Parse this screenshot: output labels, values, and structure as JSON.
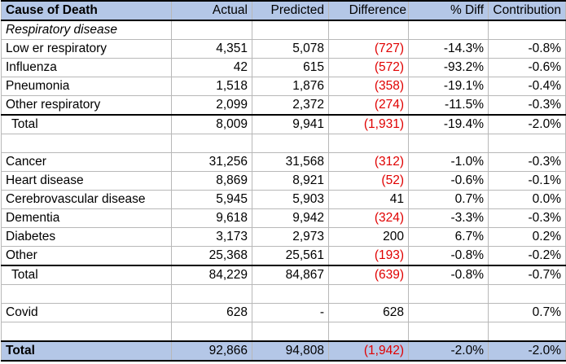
{
  "columns": [
    "Cause of Death",
    "Actual",
    "Predicted",
    "Difference",
    "% Diff",
    "Contribution"
  ],
  "rows": [
    {
      "type": "section",
      "name": "Respiratory disease"
    },
    {
      "type": "data",
      "name": "Low er respiratory",
      "actual": "4,351",
      "predicted": "5,078",
      "difference": "(727)",
      "diff_negative": true,
      "pct_diff": "-14.3%",
      "contribution": "-0.8%"
    },
    {
      "type": "data",
      "name": "Influenza",
      "actual": "42",
      "predicted": "615",
      "difference": "(572)",
      "diff_negative": true,
      "pct_diff": "-93.2%",
      "contribution": "-0.6%"
    },
    {
      "type": "data",
      "name": "Pneumonia",
      "actual": "1,518",
      "predicted": "1,876",
      "difference": "(358)",
      "diff_negative": true,
      "pct_diff": "-19.1%",
      "contribution": "-0.4%"
    },
    {
      "type": "data",
      "name": "Other respiratory",
      "actual": "2,099",
      "predicted": "2,372",
      "difference": "(274)",
      "diff_negative": true,
      "pct_diff": "-11.5%",
      "contribution": "-0.3%"
    },
    {
      "type": "subtotal",
      "name": "Total",
      "actual": "8,009",
      "predicted": "9,941",
      "difference": "(1,931)",
      "diff_negative": true,
      "pct_diff": "-19.4%",
      "contribution": "-2.0%"
    },
    {
      "type": "blank"
    },
    {
      "type": "data",
      "name": "Cancer",
      "actual": "31,256",
      "predicted": "31,568",
      "difference": "(312)",
      "diff_negative": true,
      "pct_diff": "-1.0%",
      "contribution": "-0.3%"
    },
    {
      "type": "data",
      "name": "Heart disease",
      "actual": "8,869",
      "predicted": "8,921",
      "difference": "(52)",
      "diff_negative": true,
      "pct_diff": "-0.6%",
      "contribution": "-0.1%"
    },
    {
      "type": "data",
      "name": "Cerebrovascular disease",
      "actual": "5,945",
      "predicted": "5,903",
      "difference": "41",
      "diff_negative": false,
      "pct_diff": "0.7%",
      "contribution": "0.0%"
    },
    {
      "type": "data",
      "name": "Dementia",
      "actual": "9,618",
      "predicted": "9,942",
      "difference": "(324)",
      "diff_negative": true,
      "pct_diff": "-3.3%",
      "contribution": "-0.3%"
    },
    {
      "type": "data",
      "name": "Diabetes",
      "actual": "3,173",
      "predicted": "2,973",
      "difference": "200",
      "diff_negative": false,
      "pct_diff": "6.7%",
      "contribution": "0.2%"
    },
    {
      "type": "data",
      "name": "Other",
      "actual": "25,368",
      "predicted": "25,561",
      "difference": "(193)",
      "diff_negative": true,
      "pct_diff": "-0.8%",
      "contribution": "-0.2%"
    },
    {
      "type": "subtotal",
      "name": "Total",
      "actual": "84,229",
      "predicted": "84,867",
      "difference": "(639)",
      "diff_negative": true,
      "pct_diff": "-0.8%",
      "contribution": "-0.7%"
    },
    {
      "type": "blank"
    },
    {
      "type": "data",
      "name": "Covid",
      "actual": "628",
      "predicted": "-",
      "difference": "628",
      "diff_negative": false,
      "pct_diff": "",
      "contribution": "0.7%"
    },
    {
      "type": "blank"
    },
    {
      "type": "grand",
      "name": "Total",
      "actual": "92,866",
      "predicted": "94,808",
      "difference": "(1,942)",
      "diff_negative": true,
      "pct_diff": "-2.0%",
      "contribution": "-2.0%"
    }
  ],
  "colors": {
    "header_bg": "#b4c7e7",
    "negative": "#e00000"
  }
}
